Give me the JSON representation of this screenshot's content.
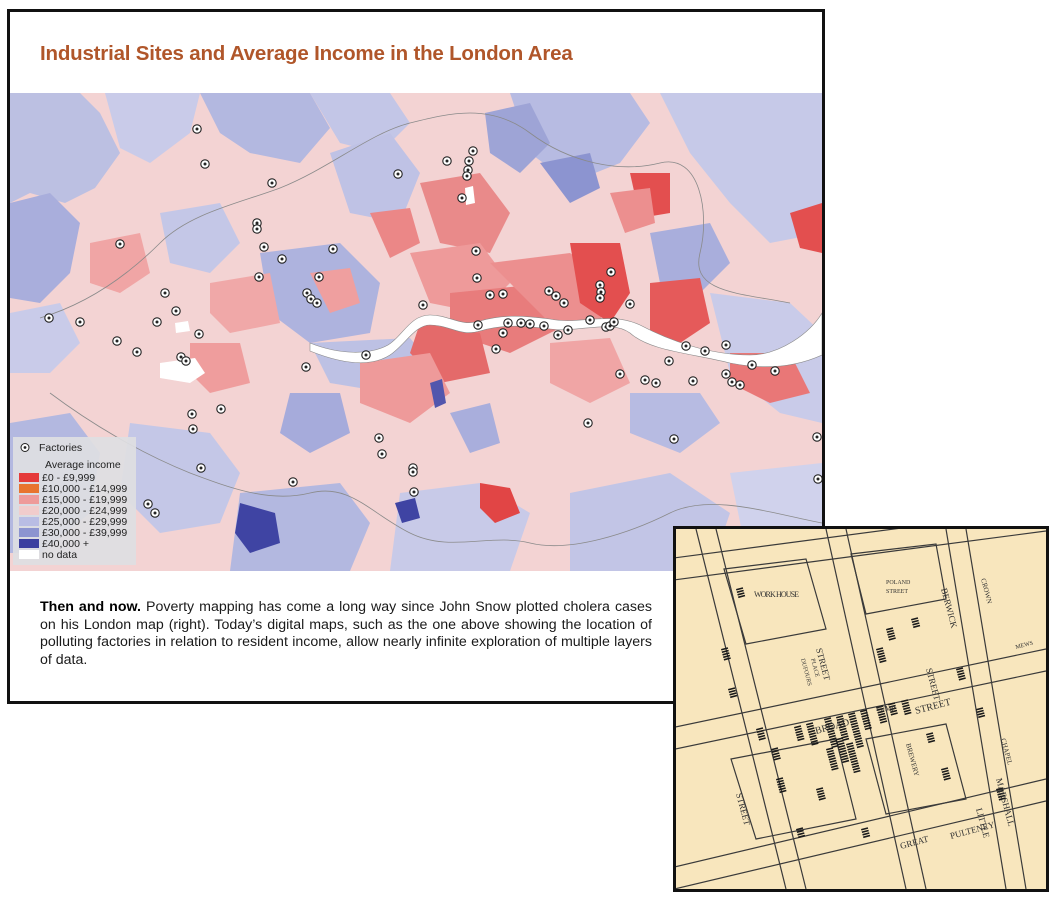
{
  "title": "Industrial Sites and Average Income in the London Area",
  "legend": {
    "factories_label": "Factories",
    "income_title": "Average income",
    "items": [
      {
        "label": "£0 - £9,999",
        "color": "#e53a3a"
      },
      {
        "label": "£10,000 - £14,999",
        "color": "#e8742e"
      },
      {
        "label": "£15,000 - £19,999",
        "color": "#ee9a9a"
      },
      {
        "label": "£20,000 - £24,999",
        "color": "#f1cccc"
      },
      {
        "label": "£25,000 - £29,999",
        "color": "#b9bde4"
      },
      {
        "label": "£30,000 - £39,999",
        "color": "#8c94d0"
      },
      {
        "label": "£40,000 +",
        "color": "#3b3fa0"
      },
      {
        "label": "no data",
        "color": "#ffffff"
      }
    ]
  },
  "caption": {
    "lead": "Then and now.",
    "text": " Poverty mapping has come a long way since John Snow plotted cholera cases on his London map (right). Today’s digital maps, such as the one above showing the location of polluting factories in relation to resident income, allow nearly infinite exploration of multiple layers of data."
  },
  "snow_map": {
    "labels": [
      "WORK HOUSE",
      "STREET",
      "BROAD",
      "STREET",
      "PUMP",
      "BREWERY",
      "STREET",
      "GREAT",
      "PULTENEY",
      "LITTLE",
      "MARSHALL",
      "BERWICK",
      "STREET",
      "POLAND",
      "STREET",
      "DUFOURS",
      "PLACE",
      "MEWS",
      "CROWN",
      "CHAPEL"
    ]
  }
}
